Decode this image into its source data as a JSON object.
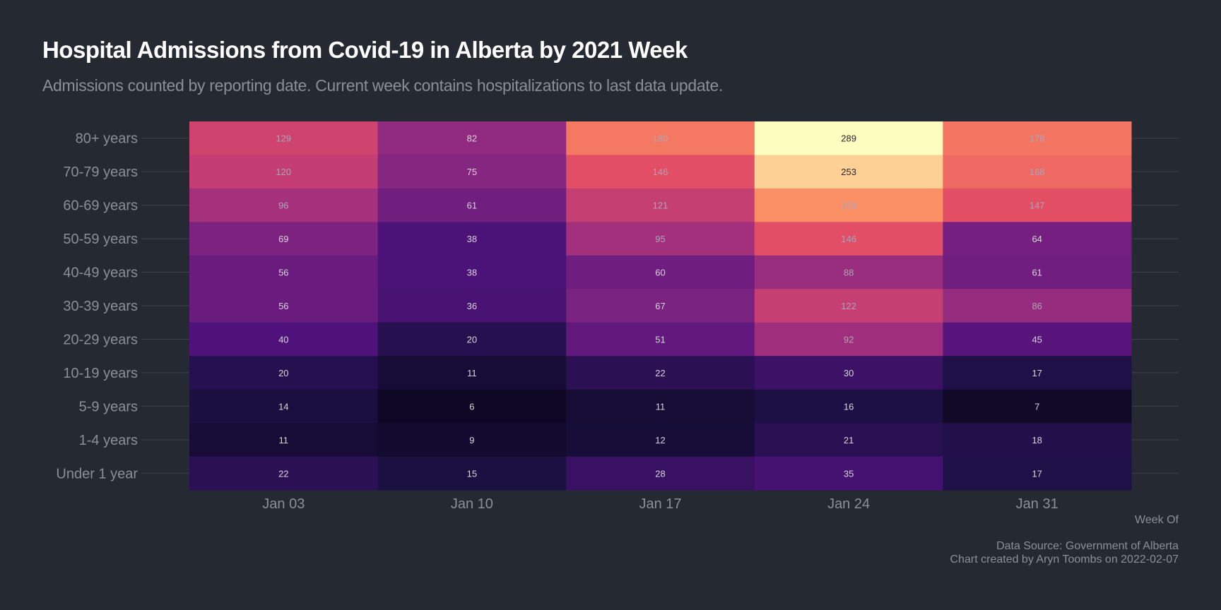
{
  "chart_data": {
    "type": "heatmap",
    "title": "Hospital Admissions from Covid-19 in Alberta by 2021 Week",
    "subtitle": "Admissions counted by reporting date. Current week contains hospitalizations to last data update.",
    "xlabel": "Week Of",
    "ylabel": "",
    "x": [
      "Jan 03",
      "Jan 10",
      "Jan 17",
      "Jan 24",
      "Jan 31"
    ],
    "y": [
      "80+ years",
      "70-79 years",
      "60-69 years",
      "50-59 years",
      "40-49 years",
      "30-39 years",
      "20-29 years",
      "10-19 years",
      "5-9 years",
      "1-4 years",
      "Under 1 year"
    ],
    "values": [
      [
        129,
        82,
        180,
        289,
        178
      ],
      [
        120,
        75,
        146,
        253,
        168
      ],
      [
        96,
        61,
        121,
        199,
        147
      ],
      [
        69,
        38,
        95,
        146,
        64
      ],
      [
        56,
        38,
        60,
        88,
        61
      ],
      [
        56,
        36,
        67,
        122,
        86
      ],
      [
        40,
        20,
        51,
        92,
        45
      ],
      [
        20,
        11,
        22,
        30,
        17
      ],
      [
        14,
        6,
        11,
        16,
        7
      ],
      [
        11,
        9,
        12,
        21,
        18
      ],
      [
        22,
        15,
        28,
        35,
        17
      ]
    ],
    "colorscale": "magma",
    "value_range": [
      6,
      289
    ],
    "legend": "none",
    "grid": true
  },
  "caption": {
    "source": "Data Source: Government of Alberta",
    "credit": "Chart created by Aryn Toombs on 2022-02-07"
  },
  "colors": {
    "background": "#252931",
    "gridline": "#3c414b",
    "axis_text": "#8a8f99",
    "title_text": "#ffffff"
  }
}
